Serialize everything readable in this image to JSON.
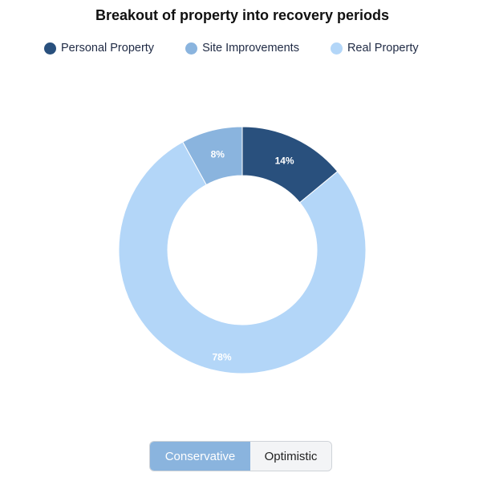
{
  "chart_data": {
    "type": "pie",
    "title": "Breakout of property into recovery periods",
    "legend_position": "top",
    "categories": [
      "Personal Property",
      "Site Improvements",
      "Real Property"
    ],
    "values": [
      14,
      8,
      78
    ],
    "labels": [
      "14%",
      "8%",
      "78%"
    ],
    "colors": [
      "#29507d",
      "#8ab4de",
      "#b3d6f8"
    ],
    "style": "donut"
  },
  "toggle": {
    "conservative_label": "Conservative",
    "optimistic_label": "Optimistic",
    "selected": "Conservative"
  }
}
